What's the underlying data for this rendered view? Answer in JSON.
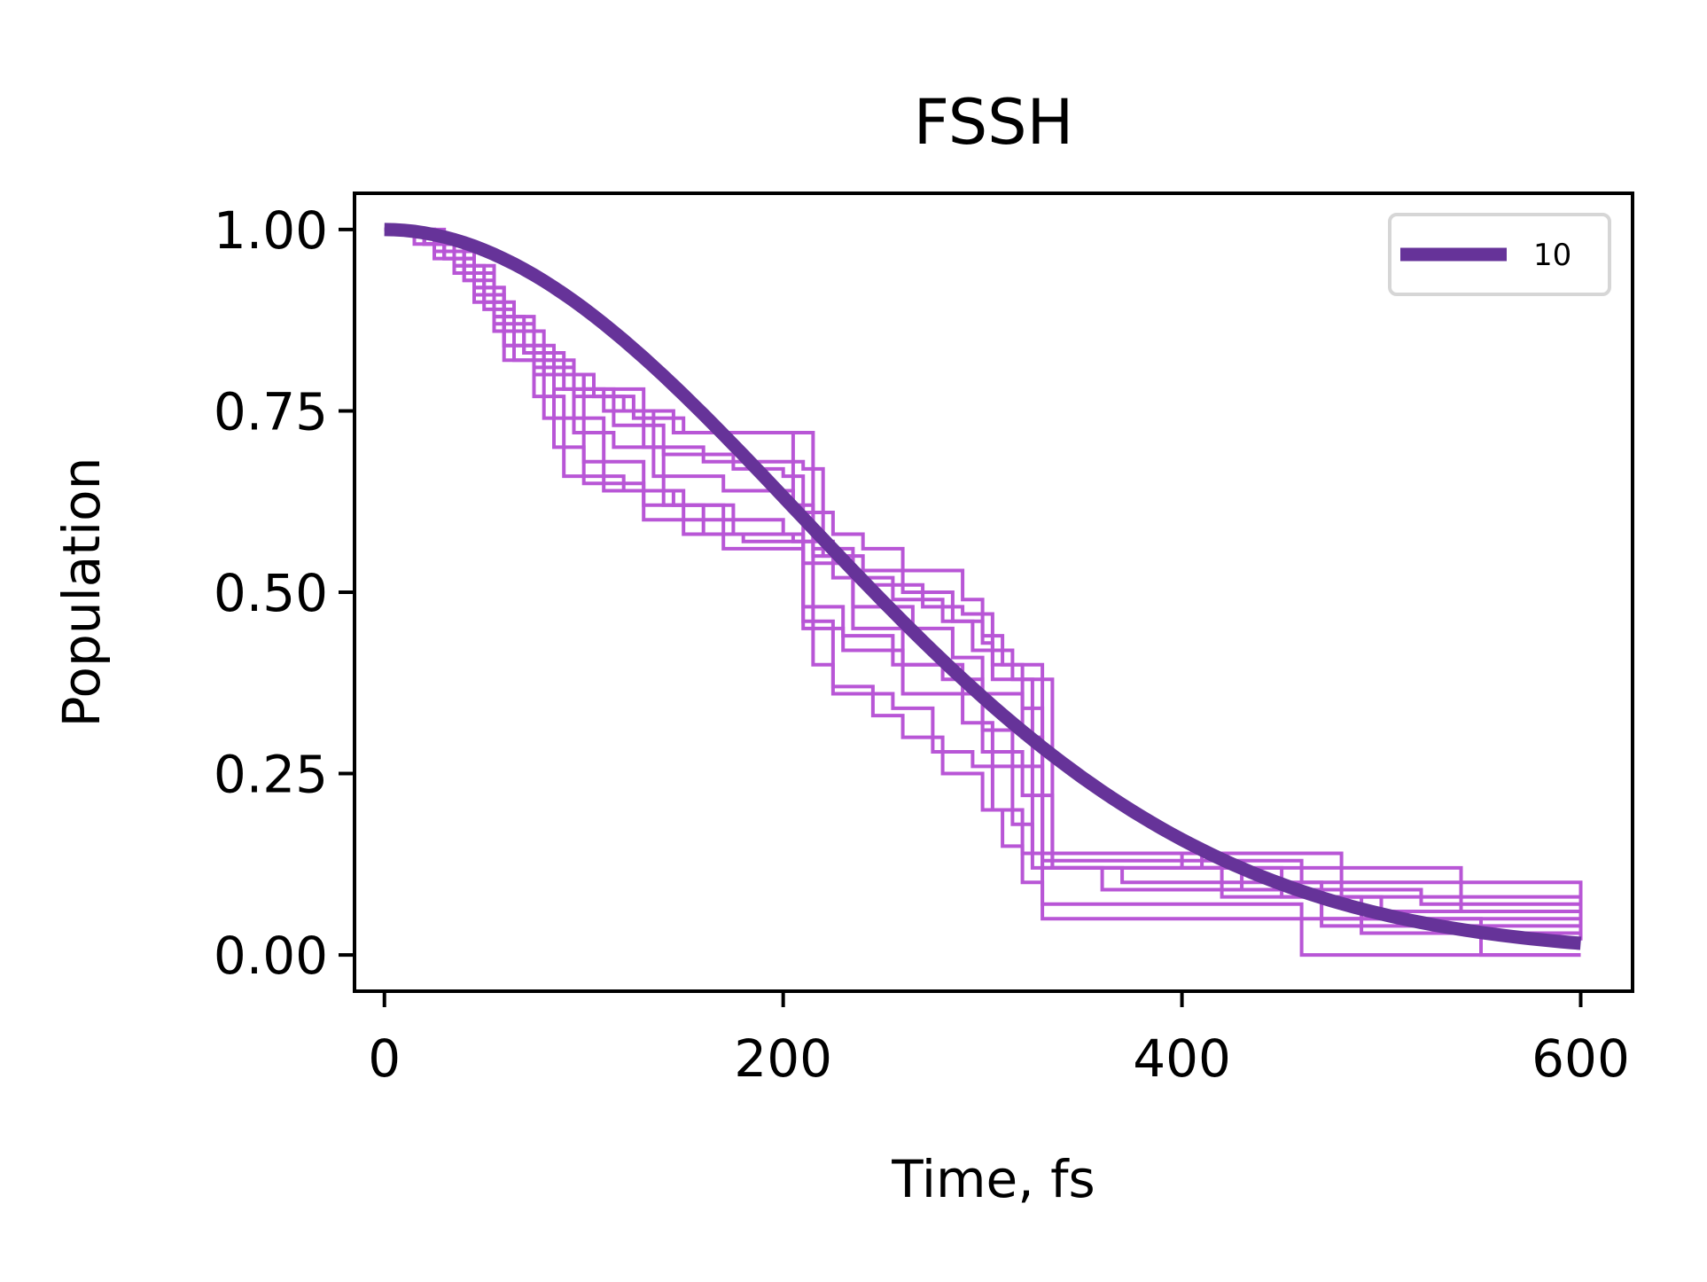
{
  "chart_data": {
    "type": "line",
    "title": "FSSH",
    "xlabel": "Time, fs",
    "ylabel": "Population",
    "xlim": [
      -15,
      626
    ],
    "ylim": [
      -0.05,
      1.05
    ],
    "xticks": [
      0,
      200,
      400,
      600
    ],
    "xtick_labels": [
      "0",
      "200",
      "400",
      "600"
    ],
    "yticks": [
      0.0,
      0.25,
      0.5,
      0.75,
      1.0
    ],
    "ytick_labels": [
      "0.00",
      "0.25",
      "0.50",
      "0.75",
      "1.00"
    ],
    "grid": false,
    "legend": {
      "position": "upper right",
      "entries": [
        {
          "label": "10",
          "color": "#663399"
        }
      ]
    },
    "colors": {
      "trajectories": "#B856D6",
      "average": "#663399"
    },
    "trajectories": [
      {
        "x": [
          0,
          15,
          25,
          35,
          45,
          55,
          75,
          95,
          120,
          145,
          215,
          225,
          240,
          260,
          290,
          300,
          305,
          320,
          330,
          480,
          600
        ],
        "y": [
          1.0,
          0.98,
          0.96,
          0.94,
          0.92,
          0.86,
          0.81,
          0.77,
          0.75,
          0.72,
          0.61,
          0.58,
          0.56,
          0.53,
          0.49,
          0.43,
          0.4,
          0.34,
          0.14,
          0.08,
          0.08
        ]
      },
      {
        "x": [
          0,
          20,
          30,
          45,
          60,
          70,
          85,
          105,
          125,
          150,
          205,
          215,
          235,
          260,
          285,
          300,
          310,
          330,
          360,
          520,
          600
        ],
        "y": [
          1.0,
          0.98,
          0.96,
          0.92,
          0.86,
          0.83,
          0.8,
          0.77,
          0.74,
          0.72,
          0.61,
          0.55,
          0.53,
          0.5,
          0.46,
          0.44,
          0.4,
          0.12,
          0.09,
          0.07,
          0.07
        ]
      },
      {
        "x": [
          0,
          25,
          35,
          50,
          65,
          80,
          100,
          130,
          160,
          210,
          220,
          240,
          270,
          290,
          305,
          325,
          410,
          540,
          600
        ],
        "y": [
          1.0,
          0.98,
          0.95,
          0.9,
          0.86,
          0.8,
          0.78,
          0.7,
          0.68,
          0.67,
          0.55,
          0.51,
          0.48,
          0.47,
          0.38,
          0.14,
          0.12,
          0.06,
          0.06
        ]
      },
      {
        "x": [
          0,
          20,
          40,
          55,
          70,
          90,
          115,
          140,
          175,
          200,
          210,
          225,
          255,
          280,
          295,
          315,
          335,
          420,
          470,
          600
        ],
        "y": [
          1.0,
          0.98,
          0.93,
          0.88,
          0.83,
          0.78,
          0.73,
          0.69,
          0.67,
          0.66,
          0.57,
          0.52,
          0.49,
          0.46,
          0.42,
          0.38,
          0.12,
          0.1,
          0.04,
          0.04
        ]
      },
      {
        "x": [
          0,
          15,
          30,
          45,
          60,
          85,
          110,
          135,
          170,
          205,
          215,
          235,
          265,
          285,
          300,
          320,
          330,
          460,
          600
        ],
        "y": [
          1.0,
          0.99,
          0.96,
          0.9,
          0.84,
          0.78,
          0.75,
          0.66,
          0.64,
          0.62,
          0.56,
          0.48,
          0.45,
          0.41,
          0.36,
          0.3,
          0.13,
          0.1,
          0.05
        ]
      },
      {
        "x": [
          0,
          25,
          40,
          50,
          65,
          95,
          115,
          140,
          170,
          200,
          210,
          235,
          260,
          290,
          305,
          320,
          335,
          430,
          470,
          600
        ],
        "y": [
          1.0,
          0.97,
          0.93,
          0.89,
          0.82,
          0.72,
          0.7,
          0.62,
          0.6,
          0.58,
          0.54,
          0.45,
          0.4,
          0.32,
          0.2,
          0.14,
          0.12,
          0.09,
          0.05,
          0.05
        ]
      },
      {
        "x": [
          0,
          20,
          35,
          55,
          75,
          100,
          130,
          160,
          205,
          215,
          225,
          255,
          275,
          295,
          315,
          325,
          370,
          420,
          490,
          600
        ],
        "y": [
          1.0,
          0.98,
          0.95,
          0.88,
          0.8,
          0.68,
          0.62,
          0.58,
          0.57,
          0.4,
          0.36,
          0.34,
          0.28,
          0.26,
          0.18,
          0.12,
          0.1,
          0.08,
          0.03,
          0.03
        ]
      },
      {
        "x": [
          0,
          25,
          45,
          60,
          80,
          110,
          145,
          175,
          210,
          230,
          260,
          300,
          320,
          335,
          400,
          450,
          500,
          600
        ],
        "y": [
          1.0,
          0.97,
          0.92,
          0.84,
          0.74,
          0.64,
          0.62,
          0.58,
          0.45,
          0.42,
          0.36,
          0.28,
          0.22,
          0.14,
          0.12,
          0.08,
          0.06,
          0.02
        ]
      },
      {
        "x": [
          0,
          20,
          40,
          55,
          75,
          90,
          120,
          150,
          180,
          210,
          230,
          255,
          280,
          300,
          315,
          330,
          440,
          550,
          600
        ],
        "y": [
          1.0,
          0.98,
          0.94,
          0.87,
          0.77,
          0.66,
          0.64,
          0.58,
          0.57,
          0.48,
          0.44,
          0.4,
          0.38,
          0.31,
          0.26,
          0.05,
          0.05,
          0.0,
          0.0
        ]
      },
      {
        "x": [
          0,
          30,
          45,
          60,
          85,
          100,
          130,
          170,
          210,
          225,
          245,
          260,
          280,
          300,
          310,
          320,
          330,
          460,
          600
        ],
        "y": [
          1.0,
          0.96,
          0.91,
          0.82,
          0.7,
          0.65,
          0.6,
          0.56,
          0.46,
          0.37,
          0.33,
          0.3,
          0.25,
          0.2,
          0.15,
          0.1,
          0.07,
          0.0,
          0.0
        ]
      }
    ],
    "series": [
      {
        "name": "10",
        "function": "gaussian_decay",
        "tau": 295,
        "x_samples": [
          0,
          50,
          100,
          150,
          200,
          250,
          300,
          350,
          400,
          450,
          500,
          550,
          600
        ],
        "y_samples": [
          1.0,
          0.972,
          0.891,
          0.772,
          0.632,
          0.488,
          0.356,
          0.245,
          0.159,
          0.097,
          0.056,
          0.031,
          0.016
        ]
      }
    ]
  }
}
